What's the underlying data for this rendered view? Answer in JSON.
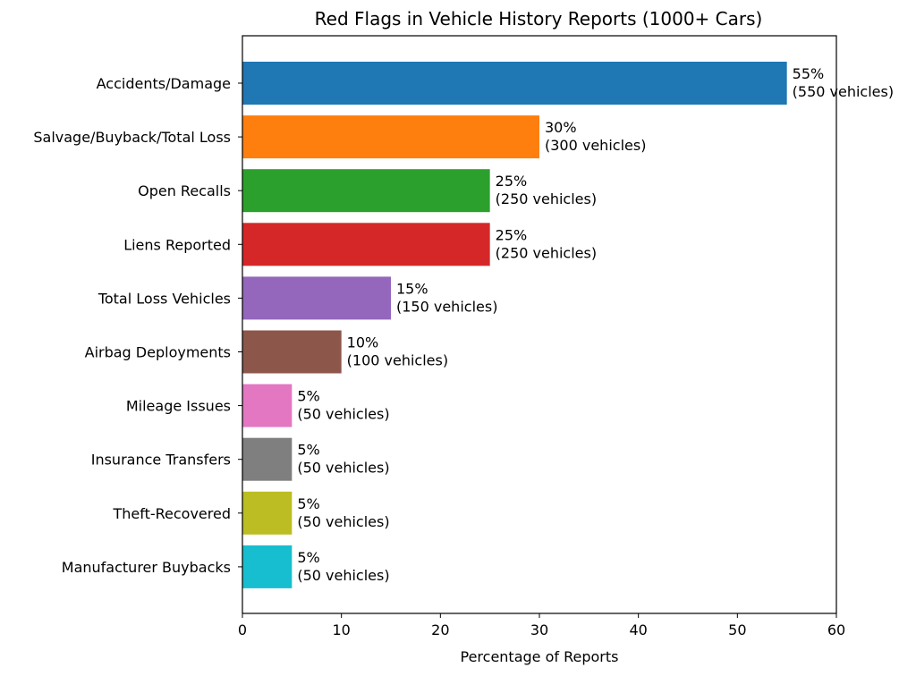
{
  "chart_data": {
    "type": "bar",
    "orientation": "horizontal",
    "title": "Red Flags in Vehicle History Reports (1000+ Cars)",
    "xlabel": "Percentage of Reports",
    "ylabel": "",
    "xlim": [
      0,
      60
    ],
    "xticks": [
      0,
      10,
      20,
      30,
      40,
      50,
      60
    ],
    "grid": false,
    "categories": [
      "Accidents/Damage",
      "Salvage/Buyback/Total Loss",
      "Open Recalls",
      "Liens Reported",
      "Total Loss Vehicles",
      "Airbag Deployments",
      "Mileage Issues",
      "Insurance Transfers",
      "Theft-Recovered",
      "Manufacturer Buybacks"
    ],
    "values": [
      55,
      30,
      25,
      25,
      15,
      10,
      5,
      5,
      5,
      5
    ],
    "data_labels": [
      [
        "55%",
        "(550 vehicles)"
      ],
      [
        "30%",
        "(300 vehicles)"
      ],
      [
        "25%",
        "(250 vehicles)"
      ],
      [
        "25%",
        "(250 vehicles)"
      ],
      [
        "15%",
        "(150 vehicles)"
      ],
      [
        "10%",
        "(100 vehicles)"
      ],
      [
        "5%",
        "(50 vehicles)"
      ],
      [
        "5%",
        "(50 vehicles)"
      ],
      [
        "5%",
        "(50 vehicles)"
      ],
      [
        "5%",
        "(50 vehicles)"
      ]
    ],
    "colors": [
      "#1f77b4",
      "#ff7f0e",
      "#2ca02c",
      "#d62728",
      "#9467bd",
      "#8c564b",
      "#e377c2",
      "#7f7f7f",
      "#bcbd22",
      "#17becf"
    ]
  }
}
